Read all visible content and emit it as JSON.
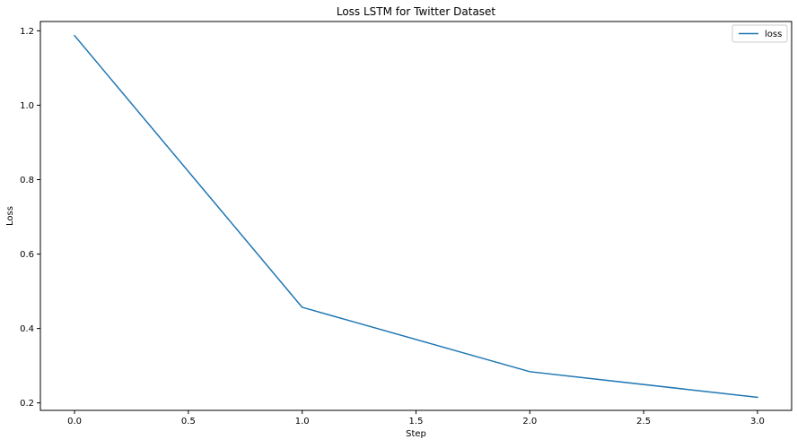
{
  "chart_data": {
    "type": "line",
    "title": "Loss LSTM for Twitter Dataset",
    "xlabel": "Step",
    "ylabel": "Loss",
    "xlim": [
      -0.15,
      3.15
    ],
    "ylim": [
      0.18,
      1.225
    ],
    "xticks": [
      0.0,
      0.5,
      1.0,
      1.5,
      2.0,
      2.5,
      3.0
    ],
    "xtick_labels": [
      "0.0",
      "0.5",
      "1.0",
      "1.5",
      "2.0",
      "2.5",
      "3.0"
    ],
    "yticks": [
      0.2,
      0.4,
      0.6,
      0.8,
      1.0,
      1.2
    ],
    "ytick_labels": [
      "0.2",
      "0.4",
      "0.6",
      "0.8",
      "1.0",
      "1.2"
    ],
    "grid": false,
    "legend": "upper-right",
    "series": [
      {
        "name": "loss",
        "color": "#1f77b4",
        "x": [
          0,
          1,
          2,
          3
        ],
        "y": [
          1.187,
          0.457,
          0.284,
          0.215
        ]
      }
    ]
  }
}
